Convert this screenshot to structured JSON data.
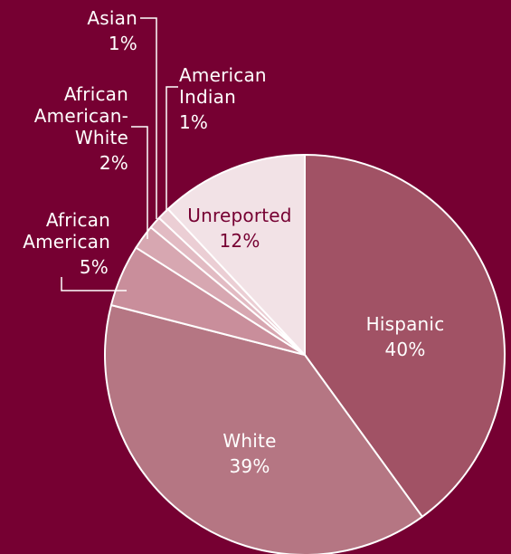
{
  "colors": {
    "background": "#760032",
    "label_light": "#ffffff",
    "label_dark": "#760032",
    "slice_stroke": "#ffffff"
  },
  "chart_data": {
    "type": "pie",
    "title": "",
    "start_angle_deg": 0,
    "direction": "clockwise",
    "slices": [
      {
        "id": "hispanic",
        "label_lines": [
          "Hispanic"
        ],
        "pct_label": "40%",
        "value": 40,
        "color": "#a15265",
        "label_color": "#ffffff",
        "label_position": "inside"
      },
      {
        "id": "white",
        "label_lines": [
          "White"
        ],
        "pct_label": "39%",
        "value": 39,
        "color": "#b57683",
        "label_color": "#ffffff",
        "label_position": "inside"
      },
      {
        "id": "african-american",
        "label_lines": [
          "African",
          "American"
        ],
        "pct_label": "5%",
        "value": 5,
        "color": "#c98e9b",
        "label_color": "#ffffff",
        "label_position": "outside-left"
      },
      {
        "id": "african-american-white",
        "label_lines": [
          "African",
          "American-",
          "White"
        ],
        "pct_label": "2%",
        "value": 2,
        "color": "#d7a7b1",
        "label_color": "#ffffff",
        "label_position": "outside-left"
      },
      {
        "id": "asian",
        "label_lines": [
          "Asian"
        ],
        "pct_label": "1%",
        "value": 1,
        "color": "#e2bbc3",
        "label_color": "#ffffff",
        "label_position": "outside-top"
      },
      {
        "id": "american-indian",
        "label_lines": [
          "American",
          "Indian"
        ],
        "pct_label": "1%",
        "value": 1,
        "color": "#ebced4",
        "label_color": "#ffffff",
        "label_position": "outside-top"
      },
      {
        "id": "unreported",
        "label_lines": [
          "Unreported"
        ],
        "pct_label": "12%",
        "value": 12,
        "color": "#f2e2e6",
        "label_color": "#760032",
        "label_position": "inside"
      }
    ]
  }
}
